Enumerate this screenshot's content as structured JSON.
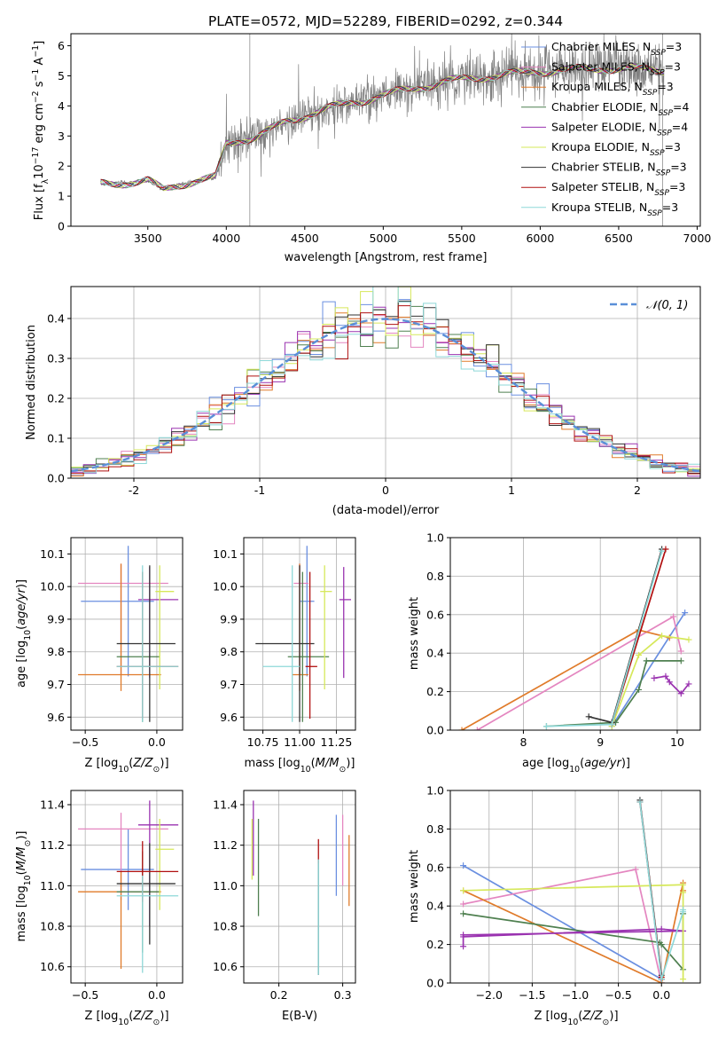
{
  "title": "PLATE=0572, MJD=52289, FIBERID=0292, z=0.344",
  "colors": {
    "chab_miles": "#6a8fe0",
    "salp_miles": "#e486c0",
    "krou_miles": "#e07b2a",
    "chab_elodie": "#4f8050",
    "salp_elodie": "#9a33b0",
    "krou_elodie": "#d6e85a",
    "chab_stelib": "#333333",
    "salp_stelib": "#b01010",
    "krou_stelib": "#8ed8d8",
    "data": "#808080",
    "gauss": "#5a8fd8"
  },
  "chart_data": [
    {
      "id": "spectrum",
      "type": "line",
      "xlabel": "wavelength [Angstrom, rest frame]",
      "ylabel": "Flux [fλ10⁻¹⁷ erg cm⁻² s⁻¹ A⁻¹]",
      "xlim": [
        3010,
        7020
      ],
      "ylim": [
        0,
        6.4
      ],
      "xticks": [
        3500,
        4000,
        4500,
        5000,
        5500,
        6000,
        6500,
        7000
      ],
      "yticks": [
        0,
        1,
        2,
        3,
        4,
        5,
        6
      ],
      "data_range": [
        3200,
        6790
      ],
      "continuum": [
        [
          3200,
          1.4
        ],
        [
          3500,
          1.5
        ],
        [
          3600,
          1.2
        ],
        [
          3700,
          1.4
        ],
        [
          3800,
          1.5
        ],
        [
          3930,
          1.6
        ],
        [
          4000,
          2.75
        ],
        [
          4200,
          3.0
        ],
        [
          4400,
          3.5
        ],
        [
          4600,
          3.85
        ],
        [
          4800,
          4.1
        ],
        [
          5000,
          4.35
        ],
        [
          5200,
          4.6
        ],
        [
          5400,
          4.8
        ],
        [
          5600,
          4.95
        ],
        [
          5800,
          5.05
        ],
        [
          6000,
          5.15
        ],
        [
          6200,
          5.2
        ],
        [
          6400,
          5.25
        ],
        [
          6790,
          5.2
        ]
      ],
      "legend": [
        {
          "name": "Chabrier MILES, N",
          "sub": "SSP",
          "tail": "=3",
          "color_key": "chab_miles"
        },
        {
          "name": "Salpeter MILES, N",
          "sub": "SSP",
          "tail": "=3",
          "color_key": "salp_miles"
        },
        {
          "name": "Kroupa MILES, N",
          "sub": "SSP",
          "tail": "=3",
          "color_key": "krou_miles"
        },
        {
          "name": "Chabrier ELODIE, N",
          "sub": "SSP",
          "tail": "=4",
          "color_key": "chab_elodie"
        },
        {
          "name": "Salpeter ELODIE, N",
          "sub": "SSP",
          "tail": "=4",
          "color_key": "salp_elodie"
        },
        {
          "name": "Kroupa ELODIE, N",
          "sub": "SSP",
          "tail": "=3",
          "color_key": "krou_elodie"
        },
        {
          "name": "Chabrier STELIB, N",
          "sub": "SSP",
          "tail": "=3",
          "color_key": "chab_stelib"
        },
        {
          "name": "Salpeter STELIB, N",
          "sub": "SSP",
          "tail": "=3",
          "color_key": "salp_stelib"
        },
        {
          "name": "Kroupa STELIB, N",
          "sub": "SSP",
          "tail": "=3",
          "color_key": "krou_stelib"
        }
      ],
      "legend_placement": "upper-right"
    },
    {
      "id": "residuals",
      "type": "histogram",
      "xlabel": "(data-model)/error",
      "ylabel": "Normed distribution",
      "xlim": [
        -2.5,
        2.5
      ],
      "ylim": [
        0,
        0.48
      ],
      "xticks": [
        -2,
        -1,
        0,
        1,
        2
      ],
      "yticks": [
        0.0,
        0.1,
        0.2,
        0.3,
        0.4
      ],
      "bin_width": 0.1,
      "gauss_label": "𝒩(0, 1)",
      "legend_placement": "upper-right",
      "grid": true
    },
    {
      "id": "age_vs_Z",
      "type": "errorbar",
      "xlabel": "Z [log10(Z/Z⊙)]",
      "ylabel": "age  [log10(age/yr)]",
      "xlim": [
        -0.6,
        0.18
      ],
      "ylim": [
        9.56,
        10.15
      ],
      "xticks": [
        -0.5,
        0.0
      ],
      "yticks": [
        9.6,
        9.7,
        9.8,
        9.9,
        10.0,
        10.1
      ],
      "points": [
        {
          "x": -0.2,
          "xerr": [
            0.33,
            0.18
          ],
          "y": 9.955,
          "yerr": [
            0.23,
            0.17
          ],
          "c": "chab_miles"
        },
        {
          "x": -0.25,
          "xerr": [
            0.3,
            0.33
          ],
          "y": 10.01,
          "yerr": [
            0.28,
            0.06
          ],
          "c": "salp_miles"
        },
        {
          "x": -0.25,
          "xerr": [
            0.3,
            0.28
          ],
          "y": 9.73,
          "yerr": [
            0.05,
            0.34
          ],
          "c": "krou_miles"
        },
        {
          "x": -0.1,
          "xerr": [
            0.18,
            0.12
          ],
          "y": 9.785,
          "yerr": [
            0.2,
            0.26
          ],
          "c": "chab_elodie"
        },
        {
          "x": -0.05,
          "xerr": [
            0.08,
            0.2
          ],
          "y": 9.96,
          "yerr": [
            0.24,
            0.1
          ],
          "c": "salp_elodie"
        },
        {
          "x": 0.02,
          "xerr": [
            0.03,
            0.1
          ],
          "y": 9.985,
          "yerr": [
            0.3,
            0.08
          ],
          "c": "krou_elodie"
        },
        {
          "x": -0.05,
          "xerr": [
            0.23,
            0.18
          ],
          "y": 9.825,
          "yerr": [
            0.24,
            0.24
          ],
          "c": "chab_stelib"
        },
        {
          "x": -0.1,
          "xerr": [
            0.18,
            0.25
          ],
          "y": 9.755,
          "yerr": [
            0.16,
            0.29
          ],
          "c": "salp_stelib"
        },
        {
          "x": -0.1,
          "xerr": [
            0.18,
            0.25
          ],
          "y": 9.755,
          "yerr": [
            0.17,
            0.31
          ],
          "c": "krou_stelib"
        }
      ],
      "grid": true
    },
    {
      "id": "age_vs_mass",
      "type": "errorbar",
      "xlabel": "mass [log10(M/M⊙)]",
      "ylabel": "",
      "xlim": [
        10.62,
        11.38
      ],
      "ylim": [
        9.56,
        10.15
      ],
      "xticks": [
        10.75,
        11.0,
        11.25
      ],
      "xticklabels": [
        "10.75",
        "11.00",
        "11.25"
      ],
      "yticks": [
        9.6,
        9.7,
        9.8,
        9.9,
        10.0,
        10.1
      ],
      "points": [
        {
          "x": 11.05,
          "xerr": [
            0.05,
            0.05
          ],
          "y": 9.955,
          "yerr": [
            0.23,
            0.17
          ],
          "c": "chab_miles"
        },
        {
          "x": 11.0,
          "xerr": [
            0.04,
            0.06
          ],
          "y": 10.01,
          "yerr": [
            0.28,
            0.06
          ],
          "c": "salp_miles"
        },
        {
          "x": 11.0,
          "xerr": [
            0.05,
            0.06
          ],
          "y": 9.73,
          "yerr": [
            0.05,
            0.34
          ],
          "c": "krou_miles"
        },
        {
          "x": 11.02,
          "xerr": [
            0.1,
            0.18
          ],
          "y": 9.785,
          "yerr": [
            0.2,
            0.26
          ],
          "c": "chab_elodie"
        },
        {
          "x": 11.3,
          "xerr": [
            0.03,
            0.05
          ],
          "y": 9.96,
          "yerr": [
            0.24,
            0.1
          ],
          "c": "salp_elodie"
        },
        {
          "x": 11.17,
          "xerr": [
            0.03,
            0.05
          ],
          "y": 9.985,
          "yerr": [
            0.3,
            0.08
          ],
          "c": "krou_elodie"
        },
        {
          "x": 11.0,
          "xerr": [
            0.3,
            0.1
          ],
          "y": 9.825,
          "yerr": [
            0.24,
            0.24
          ],
          "c": "chab_stelib"
        },
        {
          "x": 11.07,
          "xerr": [
            0.03,
            0.05
          ],
          "y": 9.755,
          "yerr": [
            0.16,
            0.29
          ],
          "c": "salp_stelib"
        },
        {
          "x": 10.95,
          "xerr": [
            0.2,
            0.05
          ],
          "y": 9.755,
          "yerr": [
            0.17,
            0.31
          ],
          "c": "krou_stelib"
        }
      ],
      "grid": true
    },
    {
      "id": "mass_weight_vs_age",
      "type": "line",
      "xlabel": "age  [log10(age/yr)]",
      "ylabel": "mass weight",
      "xlim": [
        7.05,
        10.3
      ],
      "ylim": [
        0,
        1.0
      ],
      "xticks": [
        8,
        9,
        10
      ],
      "yticks": [
        0.0,
        0.2,
        0.4,
        0.6,
        0.8,
        1.0
      ],
      "series": [
        {
          "c": "chab_miles",
          "x": [
            9.15,
            10.1
          ],
          "y": [
            0.02,
            0.61
          ]
        },
        {
          "c": "salp_miles",
          "x": [
            7.4,
            9.95,
            10.05
          ],
          "y": [
            0.0,
            0.59,
            0.41
          ]
        },
        {
          "c": "krou_miles",
          "x": [
            7.2,
            9.5,
            9.9
          ],
          "y": [
            0.0,
            0.52,
            0.48
          ]
        },
        {
          "c": "chab_elodie",
          "x": [
            8.3,
            9.2,
            9.5,
            9.6,
            10.05
          ],
          "y": [
            0.02,
            0.04,
            0.21,
            0.36,
            0.36
          ]
        },
        {
          "c": "salp_elodie",
          "x": [
            9.7,
            9.85,
            9.9,
            10.05,
            10.15
          ],
          "y": [
            0.27,
            0.28,
            0.25,
            0.19,
            0.24
          ]
        },
        {
          "c": "krou_elodie",
          "x": [
            9.15,
            9.5,
            9.8,
            10.15
          ],
          "y": [
            0.02,
            0.39,
            0.49,
            0.47
          ]
        },
        {
          "c": "chab_stelib",
          "x": [
            8.85,
            9.15,
            9.8
          ],
          "y": [
            0.07,
            0.04,
            0.94
          ]
        },
        {
          "c": "salp_stelib",
          "x": [
            9.15,
            9.85
          ],
          "y": [
            0.03,
            0.94
          ]
        },
        {
          "c": "krou_stelib",
          "x": [
            8.3,
            9.15,
            9.8
          ],
          "y": [
            0.02,
            0.03,
            0.93
          ]
        }
      ],
      "grid": true
    },
    {
      "id": "mass_vs_Z",
      "type": "errorbar",
      "xlabel": "Z [log10(Z/Z⊙)]",
      "ylabel": "mass [log10(M/M⊙)]",
      "xlim": [
        -0.6,
        0.18
      ],
      "ylim": [
        10.52,
        11.47
      ],
      "xticks": [
        -0.5,
        0.0
      ],
      "yticks": [
        10.6,
        10.8,
        11.0,
        11.2,
        11.4
      ],
      "points": [
        {
          "x": -0.2,
          "xerr": [
            0.33,
            0.18
          ],
          "y": 11.08,
          "yerr": [
            0.2,
            0.2
          ],
          "c": "chab_miles"
        },
        {
          "x": -0.25,
          "xerr": [
            0.3,
            0.33
          ],
          "y": 11.28,
          "yerr": [
            0.35,
            0.08
          ],
          "c": "salp_miles"
        },
        {
          "x": -0.25,
          "xerr": [
            0.3,
            0.28
          ],
          "y": 10.97,
          "yerr": [
            0.38,
            0.1
          ],
          "c": "krou_miles"
        },
        {
          "x": -0.1,
          "xerr": [
            0.18,
            0.12
          ],
          "y": 10.97,
          "yerr": [
            0.3,
            0.2
          ],
          "c": "chab_elodie"
        },
        {
          "x": -0.05,
          "xerr": [
            0.08,
            0.2
          ],
          "y": 11.3,
          "yerr": [
            0.5,
            0.12
          ],
          "c": "salp_elodie"
        },
        {
          "x": 0.02,
          "xerr": [
            0.03,
            0.1
          ],
          "y": 11.18,
          "yerr": [
            0.3,
            0.15
          ],
          "c": "krou_elodie"
        },
        {
          "x": -0.05,
          "xerr": [
            0.23,
            0.18
          ],
          "y": 11.01,
          "yerr": [
            0.3,
            0.2
          ],
          "c": "chab_stelib"
        },
        {
          "x": -0.1,
          "xerr": [
            0.18,
            0.25
          ],
          "y": 11.07,
          "yerr": [
            0.15,
            0.15
          ],
          "c": "salp_stelib"
        },
        {
          "x": -0.1,
          "xerr": [
            0.18,
            0.25
          ],
          "y": 10.95,
          "yerr": [
            0.38,
            0.1
          ],
          "c": "krou_stelib"
        }
      ],
      "grid": true
    },
    {
      "id": "mass_vs_ebv",
      "type": "errorbar",
      "xlabel": "E(B-V)",
      "ylabel": "",
      "xlim": [
        0.145,
        0.32
      ],
      "ylim": [
        10.52,
        11.47
      ],
      "xticks": [
        0.2,
        0.3
      ],
      "yticks": [
        10.6,
        10.8,
        11.0,
        11.2,
        11.4
      ],
      "points": [
        {
          "x": 0.29,
          "y": 11.15,
          "yerr": [
            0.2,
            0.2
          ],
          "c": "chab_miles"
        },
        {
          "x": 0.3,
          "y": 11.15,
          "yerr": [
            0.15,
            0.2
          ],
          "c": "salp_miles"
        },
        {
          "x": 0.31,
          "y": 11.05,
          "yerr": [
            0.15,
            0.2
          ],
          "c": "krou_miles"
        },
        {
          "x": 0.168,
          "y": 11.1,
          "yerr": [
            0.25,
            0.23
          ],
          "c": "chab_elodie"
        },
        {
          "x": 0.16,
          "y": 11.2,
          "yerr": [
            0.15,
            0.22
          ],
          "c": "salp_elodie"
        },
        {
          "x": 0.158,
          "y": 11.18,
          "yerr": [
            0.15,
            0.15
          ],
          "c": "krou_elodie"
        },
        {
          "x": 0.262,
          "y": 10.85,
          "yerr": [
            0.29,
            0.28
          ],
          "c": "chab_stelib"
        },
        {
          "x": 0.262,
          "y": 11.17,
          "yerr": [
            0.06,
            0.06
          ],
          "c": "salp_stelib"
        },
        {
          "x": 0.262,
          "y": 10.85,
          "yerr": [
            0.29,
            0.28
          ],
          "c": "krou_stelib"
        }
      ],
      "grid": true
    },
    {
      "id": "mass_weight_vs_Z",
      "type": "line",
      "xlabel": "Z [log10(Z/Z⊙)]",
      "ylabel": "mass weight",
      "xlim": [
        -2.45,
        0.45
      ],
      "ylim": [
        0,
        1.0
      ],
      "xticks": [
        -2.0,
        -1.5,
        -1.0,
        -0.5,
        0.0
      ],
      "yticks": [
        0.0,
        0.2,
        0.4,
        0.6,
        0.8,
        1.0
      ],
      "series": [
        {
          "c": "chab_miles",
          "x": [
            -2.3,
            0.0,
            0.0
          ],
          "y": [
            0.61,
            0.02,
            0.0
          ]
        },
        {
          "c": "salp_miles",
          "x": [
            -2.3,
            -0.3,
            0.0,
            0.0
          ],
          "y": [
            0.41,
            0.59,
            0.0,
            0.02
          ]
        },
        {
          "c": "krou_miles",
          "x": [
            -2.3,
            0.0,
            0.25,
            0.25
          ],
          "y": [
            0.48,
            0.0,
            0.52,
            0.48
          ]
        },
        {
          "c": "chab_elodie",
          "x": [
            -2.3,
            -0.02,
            0.0,
            0.25,
            0.25
          ],
          "y": [
            0.36,
            0.21,
            0.2,
            0.07,
            0.36
          ]
        },
        {
          "c": "salp_elodie",
          "x": [
            -2.3,
            0.0,
            0.25,
            -2.3,
            -2.3
          ],
          "y": [
            0.24,
            0.28,
            0.27,
            0.25,
            0.19
          ]
        },
        {
          "c": "krou_elodie",
          "x": [
            -2.3,
            0.25,
            0.25,
            0.25
          ],
          "y": [
            0.48,
            0.51,
            0.02,
            0.47
          ]
        },
        {
          "c": "chab_stelib",
          "x": [
            -0.25,
            0.0,
            0.0
          ],
          "y": [
            0.95,
            0.04,
            0.02
          ]
        },
        {
          "c": "salp_stelib",
          "x": [
            -0.25,
            0.0
          ],
          "y": [
            0.94,
            0.03
          ]
        },
        {
          "c": "krou_stelib",
          "x": [
            -0.25,
            0.0,
            0.25,
            0.25
          ],
          "y": [
            0.94,
            0.02,
            0.37,
            0.38
          ]
        }
      ],
      "grid": true
    }
  ]
}
